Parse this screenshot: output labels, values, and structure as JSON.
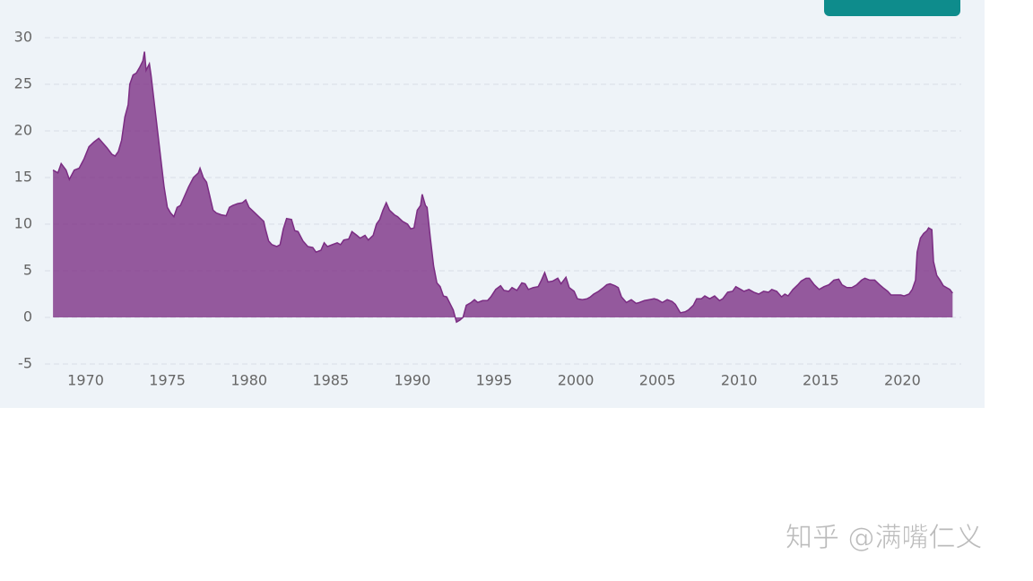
{
  "chart_data": {
    "type": "area",
    "x": [
      1968.0,
      1968.3,
      1968.5,
      1968.8,
      1969.0,
      1969.3,
      1969.6,
      1969.9,
      1970.2,
      1970.5,
      1970.8,
      1971.0,
      1971.3,
      1971.6,
      1971.8,
      1972.0,
      1972.2,
      1972.4,
      1972.6,
      1972.7,
      1972.9,
      1973.1,
      1973.3,
      1973.5,
      1973.6,
      1973.7,
      1973.9,
      1974.0,
      1974.2,
      1974.4,
      1974.6,
      1974.8,
      1975.0,
      1975.2,
      1975.4,
      1975.6,
      1975.8,
      1976.0,
      1976.3,
      1976.6,
      1976.9,
      1977.0,
      1977.2,
      1977.4,
      1977.6,
      1977.8,
      1978.0,
      1978.3,
      1978.6,
      1978.8,
      1979.0,
      1979.3,
      1979.6,
      1979.8,
      1980.0,
      1980.3,
      1980.6,
      1980.9,
      1981.0,
      1981.2,
      1981.4,
      1981.7,
      1981.9,
      1982.1,
      1982.3,
      1982.6,
      1982.8,
      1983.0,
      1983.3,
      1983.6,
      1983.9,
      1984.1,
      1984.4,
      1984.6,
      1984.8,
      1985.1,
      1985.4,
      1985.6,
      1985.8,
      1986.1,
      1986.3,
      1986.6,
      1986.8,
      1987.1,
      1987.3,
      1987.6,
      1987.8,
      1988.0,
      1988.2,
      1988.4,
      1988.6,
      1988.9,
      1989.1,
      1989.4,
      1989.7,
      1989.9,
      1990.1,
      1990.3,
      1990.5,
      1990.6,
      1990.8,
      1990.9,
      1991.1,
      1991.3,
      1991.5,
      1991.7,
      1991.9,
      1992.1,
      1992.3,
      1992.5,
      1992.7,
      1992.9,
      1993.1,
      1993.3,
      1993.6,
      1993.8,
      1994.0,
      1994.3,
      1994.6,
      1994.8,
      1995.1,
      1995.4,
      1995.6,
      1995.9,
      1996.1,
      1996.4,
      1996.7,
      1996.9,
      1997.1,
      1997.4,
      1997.7,
      1997.9,
      1998.1,
      1998.3,
      1998.6,
      1998.9,
      1999.1,
      1999.4,
      1999.6,
      1999.9,
      2000.1,
      2000.4,
      2000.7,
      2000.9,
      2001.1,
      2001.4,
      2001.7,
      2001.9,
      2002.1,
      2002.4,
      2002.6,
      2002.8,
      2003.1,
      2003.4,
      2003.7,
      2003.9,
      2004.2,
      2004.5,
      2004.8,
      2005.0,
      2005.3,
      2005.6,
      2005.9,
      2006.1,
      2006.4,
      2006.7,
      2006.9,
      2007.2,
      2007.4,
      2007.7,
      2007.9,
      2008.2,
      2008.5,
      2008.8,
      2009.0,
      2009.3,
      2009.6,
      2009.8,
      2010.1,
      2010.3,
      2010.6,
      2010.9,
      2011.2,
      2011.5,
      2011.8,
      2012.0,
      2012.3,
      2012.6,
      2012.8,
      2013.0,
      2013.3,
      2013.6,
      2013.8,
      2014.1,
      2014.3,
      2014.6,
      2014.9,
      2015.2,
      2015.5,
      2015.8,
      2016.1,
      2016.3,
      2016.6,
      2016.9,
      2017.2,
      2017.5,
      2017.7,
      2018.0,
      2018.3,
      2018.6,
      2018.8,
      2019.1,
      2019.3,
      2019.6,
      2019.9,
      2020.1,
      2020.4,
      2020.6,
      2020.8,
      2020.9,
      2021.1,
      2021.3,
      2021.5,
      2021.6,
      2021.8,
      2021.9,
      2022.1,
      2022.3,
      2022.5,
      2022.7,
      2022.9,
      2023.07
    ],
    "series": [
      {
        "color": "#7b2d83",
        "values": [
          15.8,
          15.5,
          16.5,
          15.8,
          14.8,
          15.8,
          16.0,
          17.0,
          18.3,
          18.8,
          19.2,
          18.8,
          18.2,
          17.5,
          17.3,
          17.8,
          19.0,
          21.5,
          22.8,
          25.0,
          26.0,
          26.2,
          26.8,
          27.5,
          28.5,
          26.5,
          27.2,
          26.0,
          23.0,
          20.0,
          17.0,
          14.0,
          11.8,
          11.2,
          10.8,
          11.8,
          12.0,
          12.8,
          14.0,
          15.0,
          15.5,
          16.0,
          15.0,
          14.5,
          13.0,
          11.5,
          11.2,
          11.0,
          10.9,
          11.8,
          12.0,
          12.2,
          12.3,
          12.6,
          11.8,
          11.3,
          10.8,
          10.3,
          9.5,
          8.2,
          7.8,
          7.6,
          7.8,
          9.5,
          10.6,
          10.5,
          9.3,
          9.2,
          8.2,
          7.6,
          7.5,
          7.0,
          7.2,
          8.0,
          7.6,
          7.8,
          8.0,
          7.8,
          8.3,
          8.4,
          9.2,
          8.8,
          8.5,
          8.8,
          8.3,
          8.8,
          10.0,
          10.5,
          11.5,
          12.3,
          11.5,
          11.0,
          10.8,
          10.3,
          10.0,
          9.5,
          9.6,
          11.5,
          12.0,
          13.2,
          12.0,
          11.8,
          8.5,
          5.5,
          3.7,
          3.3,
          2.3,
          2.2,
          1.5,
          0.8,
          -0.5,
          -0.3,
          0.0,
          1.3,
          1.6,
          1.9,
          1.6,
          1.8,
          1.8,
          2.2,
          3.0,
          3.4,
          2.9,
          2.8,
          3.2,
          2.9,
          3.7,
          3.6,
          3.0,
          3.2,
          3.3,
          4.0,
          4.8,
          3.8,
          3.9,
          4.2,
          3.6,
          4.3,
          3.2,
          2.8,
          2.0,
          1.9,
          2.0,
          2.2,
          2.5,
          2.8,
          3.2,
          3.5,
          3.6,
          3.4,
          3.2,
          2.2,
          1.6,
          1.9,
          1.5,
          1.6,
          1.8,
          1.9,
          2.0,
          1.9,
          1.6,
          1.9,
          1.7,
          1.4,
          0.5,
          0.6,
          0.8,
          1.3,
          2.0,
          2.0,
          2.3,
          2.0,
          2.3,
          1.8,
          2.0,
          2.7,
          2.8,
          3.3,
          3.0,
          2.8,
          3.0,
          2.7,
          2.5,
          2.8,
          2.7,
          3.0,
          2.8,
          2.2,
          2.5,
          2.3,
          3.0,
          3.5,
          3.9,
          4.2,
          4.2,
          3.5,
          3.0,
          3.3,
          3.5,
          4.0,
          4.1,
          3.5,
          3.2,
          3.2,
          3.5,
          4.0,
          4.2,
          4.0,
          4.0,
          3.5,
          3.2,
          2.8,
          2.4,
          2.4,
          2.4,
          2.3,
          2.5,
          3.0,
          4.0,
          7.0,
          8.5,
          9.0,
          9.3,
          9.6,
          9.4,
          6.0,
          4.5,
          4.0,
          3.4,
          3.2,
          3.0,
          2.6
        ]
      }
    ],
    "xlim": [
      1967.5,
      2023.6
    ],
    "xticks": [
      1970,
      1975,
      1980,
      1985,
      1990,
      1995,
      2000,
      2005,
      2010,
      2015,
      2020
    ],
    "ylim": [
      -5,
      30
    ],
    "yticks": [
      -5,
      0,
      5,
      10,
      15,
      20,
      25,
      30
    ],
    "grid": true
  },
  "watermark": "知乎 @满嘴仁义"
}
